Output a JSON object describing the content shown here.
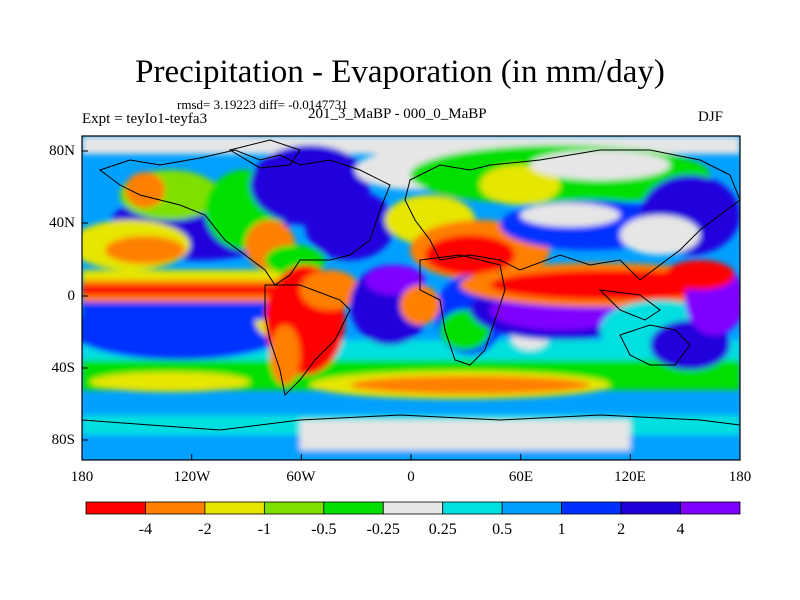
{
  "title": "Precipitation - Evaporation (in mm/day)",
  "stats": "rmsd= 3.19223 diff= -0.0147731",
  "expt": "Expt = teyIo1-teyfa3",
  "period": "201_3_MaBP - 000_0_MaBP",
  "season": "DJF",
  "y_labels": [
    "80N",
    "40N",
    "0",
    "40S",
    "80S"
  ],
  "x_labels": [
    "180",
    "120W",
    "60W",
    "0",
    "60E",
    "120E",
    "180"
  ],
  "colorbar": {
    "labels": [
      "-4",
      "-2",
      "-1",
      "-0.5",
      "-0.25",
      "0.25",
      "0.5",
      "1",
      "2",
      "4"
    ],
    "colors": [
      "#ff0000",
      "#ff7f00",
      "#e6e600",
      "#7fe000",
      "#00e000",
      "#e6e6e6",
      "#00e0e0",
      "#00a0ff",
      "#0030ff",
      "#2000dd",
      "#8000ff"
    ]
  }
}
